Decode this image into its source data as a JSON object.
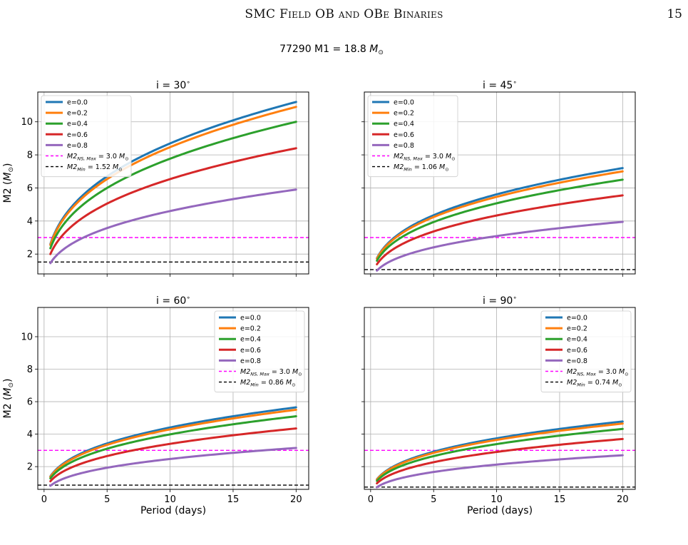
{
  "header": {
    "running_title": "SMC Field OB and OBe Binaries",
    "page_number": "15"
  },
  "figure": {
    "suptitle_prefix": "77290 M1 = 18.8 ",
    "suptitle_unit_main": "M",
    "suptitle_unit_sub": "⊙"
  },
  "colors": {
    "e0": "#1f77b4",
    "e02": "#ff7f0e",
    "e04": "#2ca02c",
    "e06": "#d62728",
    "e08": "#9467bd",
    "ns_max": "#ff00ff",
    "m2_min": "#000000"
  },
  "chart_data": [
    {
      "type": "line",
      "panel": "top-left",
      "title_prefix": "i = 30",
      "title_sup": "∘",
      "xlabel": "",
      "ylabel_main": "M2 (",
      "ylabel_unit": "M",
      "ylabel_sub": "⊙",
      "ylabel_close": ")",
      "xlim": [
        -0.5,
        21
      ],
      "ylim": [
        0.8,
        11.8
      ],
      "xticks": [
        0,
        5,
        10,
        15,
        20
      ],
      "yticks": [
        2,
        4,
        6,
        8,
        10
      ],
      "show_xtick_labels": false,
      "show_ytick_labels": true,
      "grid": true,
      "legend_position": "upper-left",
      "x": [
        0.5,
        20
      ],
      "series": [
        {
          "name": "e=0.0",
          "color": "#1f77b4",
          "values_at_x_start": 2.6,
          "values_at_x_end": 11.2
        },
        {
          "name": "e=0.2",
          "color": "#ff7f0e",
          "values_at_x_start": 2.55,
          "values_at_x_end": 10.9
        },
        {
          "name": "e=0.4",
          "color": "#2ca02c",
          "values_at_x_start": 2.35,
          "values_at_x_end": 10.0
        },
        {
          "name": "e=0.6",
          "color": "#d62728",
          "values_at_x_start": 2.0,
          "values_at_x_end": 8.4
        },
        {
          "name": "e=0.8",
          "color": "#9467bd",
          "values_at_x_start": 1.45,
          "values_at_x_end": 5.9
        }
      ],
      "hlines": [
        {
          "name_main": "M2",
          "name_sub": "NS, Max",
          "name_val": " = 3.0 ",
          "name_unit": "M",
          "name_unit_sub": "⊙",
          "value": 3.0,
          "style": "dashed",
          "color": "#ff00ff"
        },
        {
          "name_main": "M2",
          "name_sub": "Min",
          "name_val": " = 1.52 ",
          "name_unit": "M",
          "name_unit_sub": "⊙",
          "value": 1.52,
          "style": "dashed",
          "color": "#000000"
        }
      ]
    },
    {
      "type": "line",
      "panel": "top-right",
      "title_prefix": "i = 45",
      "title_sup": "∘",
      "xlabel": "",
      "ylabel_main": "",
      "ylabel_unit": "",
      "ylabel_sub": "",
      "ylabel_close": "",
      "xlim": [
        -0.5,
        21
      ],
      "ylim": [
        0.8,
        11.8
      ],
      "xticks": [
        0,
        5,
        10,
        15,
        20
      ],
      "yticks": [
        2,
        4,
        6,
        8,
        10
      ],
      "show_xtick_labels": false,
      "show_ytick_labels": false,
      "grid": true,
      "legend_position": "upper-left",
      "x": [
        0.5,
        20
      ],
      "series": [
        {
          "name": "e=0.0",
          "color": "#1f77b4",
          "values_at_x_start": 1.75,
          "values_at_x_end": 7.2
        },
        {
          "name": "e=0.2",
          "color": "#ff7f0e",
          "values_at_x_start": 1.72,
          "values_at_x_end": 7.0
        },
        {
          "name": "e=0.4",
          "color": "#2ca02c",
          "values_at_x_start": 1.6,
          "values_at_x_end": 6.5
        },
        {
          "name": "e=0.6",
          "color": "#d62728",
          "values_at_x_start": 1.38,
          "values_at_x_end": 5.55
        },
        {
          "name": "e=0.8",
          "color": "#9467bd",
          "values_at_x_start": 1.0,
          "values_at_x_end": 3.95
        }
      ],
      "hlines": [
        {
          "name_main": "M2",
          "name_sub": "NS, Max",
          "name_val": " = 3.0 ",
          "name_unit": "M",
          "name_unit_sub": "⊙",
          "value": 3.0,
          "style": "dashed",
          "color": "#ff00ff"
        },
        {
          "name_main": "M2",
          "name_sub": "Min",
          "name_val": " = 1.06 ",
          "name_unit": "M",
          "name_unit_sub": "⊙",
          "value": 1.06,
          "style": "dashed",
          "color": "#000000"
        }
      ]
    },
    {
      "type": "line",
      "panel": "bottom-left",
      "title_prefix": "i = 60",
      "title_sup": "∘",
      "xlabel": "Period (days)",
      "ylabel_main": "M2 (",
      "ylabel_unit": "M",
      "ylabel_sub": "⊙",
      "ylabel_close": ")",
      "xlim": [
        -0.5,
        21
      ],
      "ylim": [
        0.6,
        11.8
      ],
      "xticks": [
        0,
        5,
        10,
        15,
        20
      ],
      "yticks": [
        2,
        4,
        6,
        8,
        10
      ],
      "show_xtick_labels": true,
      "show_ytick_labels": true,
      "grid": true,
      "legend_position": "upper-right",
      "x": [
        0.5,
        20
      ],
      "series": [
        {
          "name": "e=0.0",
          "color": "#1f77b4",
          "values_at_x_start": 1.4,
          "values_at_x_end": 5.65
        },
        {
          "name": "e=0.2",
          "color": "#ff7f0e",
          "values_at_x_start": 1.37,
          "values_at_x_end": 5.5
        },
        {
          "name": "e=0.4",
          "color": "#2ca02c",
          "values_at_x_start": 1.28,
          "values_at_x_end": 5.1
        },
        {
          "name": "e=0.6",
          "color": "#d62728",
          "values_at_x_start": 1.1,
          "values_at_x_end": 4.35
        },
        {
          "name": "e=0.8",
          "color": "#9467bd",
          "values_at_x_start": 0.82,
          "values_at_x_end": 3.15
        }
      ],
      "hlines": [
        {
          "name_main": "M2",
          "name_sub": "NS, Max",
          "name_val": " = 3.0 ",
          "name_unit": "M",
          "name_unit_sub": "⊙",
          "value": 3.0,
          "style": "dashed",
          "color": "#ff00ff"
        },
        {
          "name_main": "M2",
          "name_sub": "Min",
          "name_val": " = 0.86 ",
          "name_unit": "M",
          "name_unit_sub": "⊙",
          "value": 0.86,
          "style": "dashed",
          "color": "#000000"
        }
      ]
    },
    {
      "type": "line",
      "panel": "bottom-right",
      "title_prefix": "i = 90",
      "title_sup": "∘",
      "xlabel": "Period (days)",
      "ylabel_main": "",
      "ylabel_unit": "",
      "ylabel_sub": "",
      "ylabel_close": "",
      "xlim": [
        -0.5,
        21
      ],
      "ylim": [
        0.6,
        11.8
      ],
      "xticks": [
        0,
        5,
        10,
        15,
        20
      ],
      "yticks": [
        2,
        4,
        6,
        8,
        10
      ],
      "show_xtick_labels": true,
      "show_ytick_labels": false,
      "grid": true,
      "legend_position": "upper-right",
      "x": [
        0.5,
        20
      ],
      "series": [
        {
          "name": "e=0.0",
          "color": "#1f77b4",
          "values_at_x_start": 1.22,
          "values_at_x_end": 4.78
        },
        {
          "name": "e=0.2",
          "color": "#ff7f0e",
          "values_at_x_start": 1.2,
          "values_at_x_end": 4.65
        },
        {
          "name": "e=0.4",
          "color": "#2ca02c",
          "values_at_x_start": 1.12,
          "values_at_x_end": 4.32
        },
        {
          "name": "e=0.6",
          "color": "#d62728",
          "values_at_x_start": 0.97,
          "values_at_x_end": 3.7
        },
        {
          "name": "e=0.8",
          "color": "#9467bd",
          "values_at_x_start": 0.73,
          "values_at_x_end": 2.7
        }
      ],
      "hlines": [
        {
          "name_main": "M2",
          "name_sub": "NS, Max",
          "name_val": " = 3.0 ",
          "name_unit": "M",
          "name_unit_sub": "⊙",
          "value": 3.0,
          "style": "dashed",
          "color": "#ff00ff"
        },
        {
          "name_main": "M2",
          "name_sub": "Min",
          "name_val": " = 0.74 ",
          "name_unit": "M",
          "name_unit_sub": "⊙",
          "value": 0.74,
          "style": "dashed",
          "color": "#000000"
        }
      ]
    }
  ]
}
